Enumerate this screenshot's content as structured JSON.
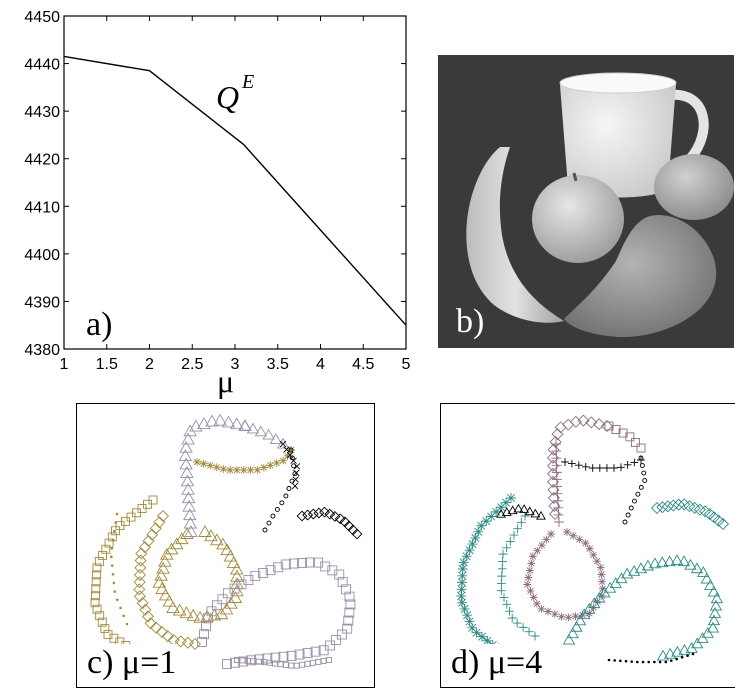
{
  "chart_data": [
    {
      "type": "line",
      "xlabel": "μ",
      "ylabel": "",
      "xlim": [
        1,
        5
      ],
      "ylim": [
        4380,
        4450
      ],
      "x_ticks": [
        "1",
        "1.5",
        "2",
        "2.5",
        "3",
        "3.5",
        "4",
        "4.5",
        "5"
      ],
      "y_ticks": [
        "4380",
        "4390",
        "4400",
        "4410",
        "4420",
        "4430",
        "4440",
        "4450"
      ],
      "series": [
        {
          "name": "Q^E",
          "x": [
            1,
            2,
            3.1,
            5
          ],
          "y": [
            4441.5,
            4438.5,
            4423,
            4385
          ]
        }
      ],
      "annotation": {
        "main": "Q",
        "sup": "E"
      },
      "panel_label": "a)"
    }
  ],
  "panels": {
    "b": {
      "label": "b)"
    },
    "c": {
      "label": "c) μ=1",
      "colors": {
        "gold": "#a08a3a",
        "lavender": "#9a90a8",
        "black": "#000000"
      }
    },
    "d": {
      "label": "d) μ=4",
      "colors": {
        "teal": "#2e8a86",
        "mauve": "#8e6e80",
        "black": "#000000"
      }
    }
  }
}
